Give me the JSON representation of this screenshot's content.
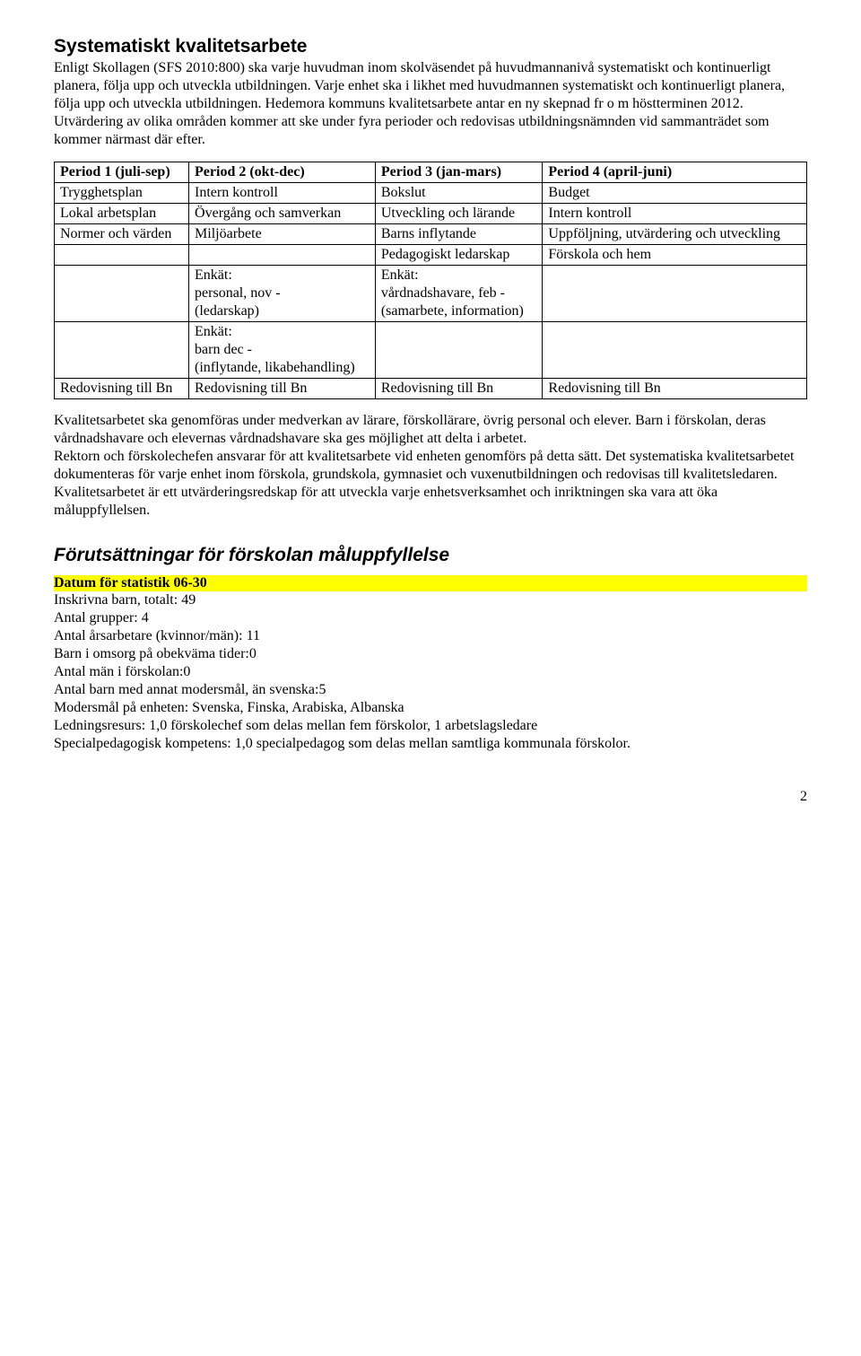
{
  "heading1": "Systematiskt kvalitetsarbete",
  "intro": "Enligt Skollagen (SFS 2010:800) ska varje huvudman inom skolväsendet på huvudmannanivå systematiskt och kontinuerligt planera, följa upp och utveckla utbildningen. Varje enhet ska i likhet med huvudmannen systematiskt och kontinuerligt planera, följa upp och utveckla utbildningen. Hedemora kommuns kvalitetsarbete antar en ny skepnad fr o m höstterminen 2012. Utvärdering av olika områden kommer att ske under fyra perioder och redovisas utbildningsnämnden vid sammanträdet som kommer närmast där efter.",
  "table": {
    "headers": [
      "Period 1 (juli-sep)",
      "Period 2 (okt-dec)",
      "Period 3 (jan-mars)",
      "Period 4 (april-juni)"
    ],
    "rows": [
      [
        "Trygghetsplan",
        "Intern kontroll",
        "Bokslut",
        "Budget"
      ],
      [
        "Lokal arbetsplan",
        "Övergång och samverkan",
        "Utveckling och lärande",
        "Intern kontroll"
      ],
      [
        "Normer och värden",
        "Miljöarbete",
        "Barns inflytande",
        "Uppföljning, utvärdering och utveckling"
      ],
      [
        "",
        "",
        "Pedagogiskt ledarskap",
        "Förskola och hem"
      ],
      [
        "",
        "Enkät:\npersonal, nov -\n(ledarskap)",
        "Enkät:\nvårdnadshavare, feb -\n(samarbete, information)",
        ""
      ],
      [
        "",
        "Enkät:\nbarn dec -\n(inflytande, likabehandling)",
        "",
        ""
      ],
      [
        "Redovisning till Bn",
        "Redovisning till Bn",
        "Redovisning till Bn",
        "Redovisning till Bn"
      ]
    ]
  },
  "para2": "Kvalitetsarbetet ska genomföras under medverkan av lärare, förskollärare, övrig personal och elever. Barn i förskolan, deras vårdnadshavare och elevernas vårdnadshavare ska ges möjlighet att delta i arbetet.\nRektorn och förskolechefen ansvarar för att kvalitetsarbete vid enheten genomförs på detta sätt. Det systematiska kvalitetsarbetet dokumenteras för varje enhet inom förskola, grundskola, gymnasiet och vuxenutbildningen och redovisas till kvalitetsledaren. Kvalitetsarbetet är ett utvärderingsredskap för att utveckla varje enhetsverksamhet och inriktningen ska vara att öka måluppfyllelsen.",
  "heading2": "Förutsättningar för förskolan måluppfyllelse",
  "highlight": "Datum för statistik 06-30",
  "stats": [
    "Inskrivna barn, totalt: 49",
    "Antal grupper: 4",
    "Antal årsarbetare (kvinnor/män): 11",
    "Barn i omsorg på obekväma tider:0",
    "Antal män i förskolan:0",
    "Antal barn med annat modersmål, än svenska:5",
    "Modersmål på enheten: Svenska, Finska, Arabiska, Albanska",
    "Ledningsresurs: 1,0 förskolechef som delas mellan fem förskolor, 1 arbetslagsledare",
    "Specialpedagogisk kompetens: 1,0 specialpedagog som delas mellan samtliga kommunala förskolor."
  ],
  "pageNumber": "2"
}
